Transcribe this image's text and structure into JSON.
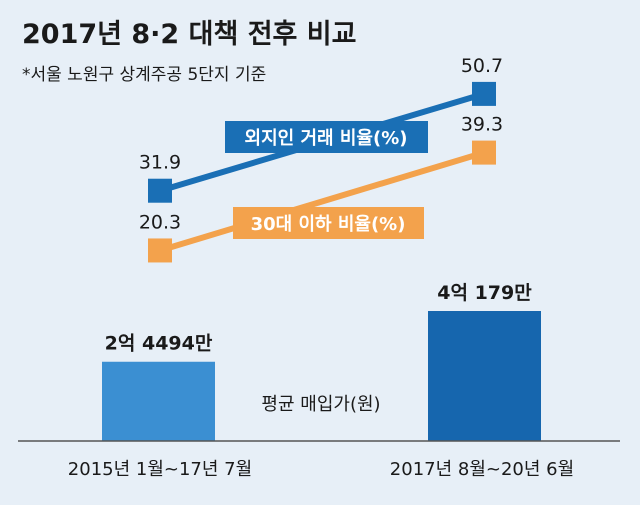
{
  "title": "2017년 8·2 대책 전후 비교",
  "subtitle": "*서울 노원구 상계주공 5단지 기준",
  "colors": {
    "background": "#e7eff7",
    "foreign_line": "#1a6fb5",
    "foreign_marker": "#1a6fb5",
    "under30_line": "#f3a24c",
    "under30_marker": "#f3a24c",
    "bar": "#3b8fd2",
    "bar_dark": "#1666ae",
    "text": "#1a1a1a"
  },
  "chart_data": {
    "type": "bar+line",
    "categories": [
      "2015년 1월~17년 7월",
      "2017년 8월~20년 6월"
    ],
    "bars": {
      "name": "평균 매입가(원)",
      "values": [
        244940000,
        401790000
      ],
      "labels": [
        "2억 4494만",
        "4억 179만"
      ]
    },
    "series": [
      {
        "name": "외지인 거래 비율(%)",
        "values": [
          31.9,
          50.7
        ],
        "labels": [
          "31.9",
          "50.7"
        ]
      },
      {
        "name": "30대 이하 비율(%)",
        "values": [
          20.3,
          39.3
        ],
        "labels": [
          "20.3",
          "39.3"
        ]
      }
    ]
  }
}
